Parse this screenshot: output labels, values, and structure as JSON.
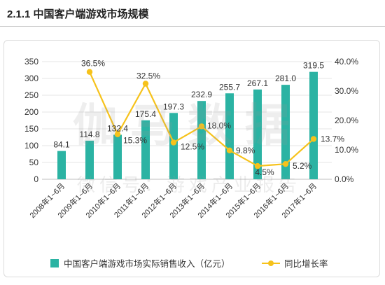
{
  "page": {
    "title": "2.1.1 中国客户端游戏市场规模"
  },
  "watermark": {
    "main": "伽马数据",
    "sub": "微信号：游戏产业报告"
  },
  "colors": {
    "bar": "#2bb3a3",
    "line": "#f6c21b",
    "text": "#333333",
    "grid": "#e4e4e4",
    "axis": "#bfbfbf"
  },
  "chart_data": {
    "type": "bar",
    "title": "",
    "categories": [
      "2008年1~6月",
      "2009年1~6月",
      "2010年1~6月",
      "2011年1~6月",
      "2012年1~6月",
      "2013年1~6月",
      "2014年1~6月",
      "2015年1~6月",
      "2016年1~6月",
      "2017年1~6月"
    ],
    "series": [
      {
        "name": "中国客户端游戏市场实际销售收入（亿元）",
        "type": "bar",
        "axis": "left",
        "values": [
          84.1,
          114.8,
          132.4,
          175.4,
          197.3,
          232.9,
          255.7,
          267.1,
          281.0,
          319.5
        ],
        "value_labels": [
          "84.1",
          "114.8",
          "132.4",
          "175.4",
          "197.3",
          "232.9",
          "255.7",
          "267.1",
          "281.0",
          "319.5"
        ]
      },
      {
        "name": "同比增长率",
        "type": "line",
        "axis": "right",
        "unit": "%",
        "values": [
          null,
          36.5,
          15.3,
          32.5,
          12.5,
          18.0,
          9.8,
          4.5,
          5.2,
          13.7
        ],
        "value_labels": [
          null,
          "36.5%",
          "15.3%",
          "32.5%",
          "12.5%",
          "18.0%",
          "9.8%",
          "4.5%",
          "5.2%",
          "13.7%"
        ]
      }
    ],
    "y_axis": {
      "range": [
        0,
        350
      ],
      "ticks": [
        "0",
        "50",
        "100",
        "150",
        "200",
        "250",
        "300",
        "350"
      ]
    },
    "y2_axis": {
      "range": [
        0,
        40
      ],
      "unit": "%",
      "ticks": [
        "0.0%",
        "10.0%",
        "20.0%",
        "30.0%",
        "40.0%"
      ]
    },
    "grid": true,
    "legend": "bottom"
  }
}
